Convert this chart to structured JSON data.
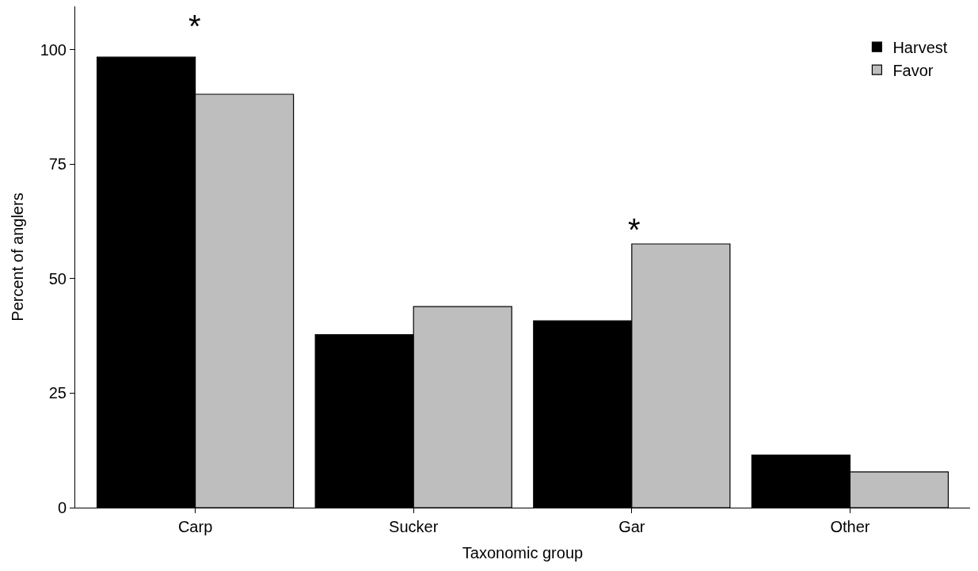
{
  "chart_data": {
    "type": "bar",
    "xlabel": "Taxonomic group",
    "ylabel": "Percent of anglers",
    "categories": [
      "Carp",
      "Sucker",
      "Gar",
      "Other"
    ],
    "series": [
      {
        "name": "Harvest",
        "color": "#000000",
        "values": [
          98.4,
          37.8,
          40.8,
          11.5
        ]
      },
      {
        "name": "Favor",
        "color": "#bebebe",
        "values": [
          90.3,
          43.9,
          57.6,
          7.8
        ]
      }
    ],
    "ylim": [
      0,
      109.5
    ],
    "yticks": [
      0,
      25,
      50,
      75,
      100
    ],
    "legend": "top right",
    "annotations": [
      "*",
      "*"
    ]
  }
}
